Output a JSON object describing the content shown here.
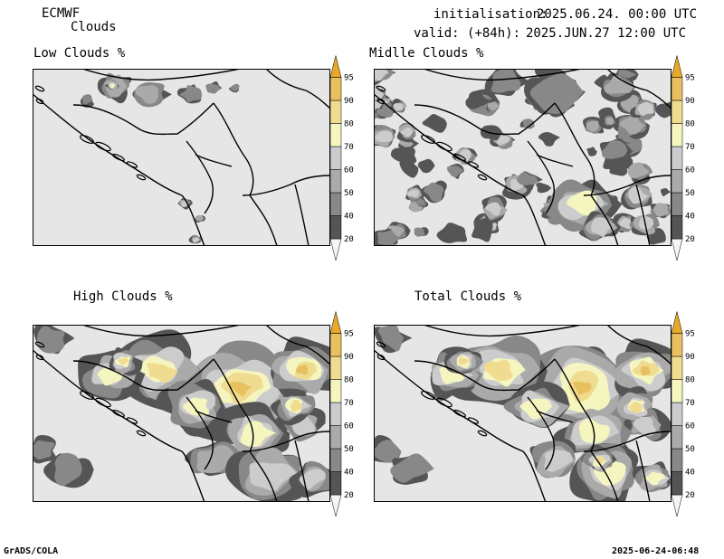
{
  "header": {
    "model": "ECMWF",
    "product": "Clouds",
    "init_label": "initialisation:",
    "init_value": "2025.06.24. 00:00 UTC",
    "valid_label": "valid: (+84h):",
    "valid_value": "2025.JUN.27 12:00 UTC"
  },
  "panels": [
    {
      "title": "Low Clouds %",
      "coverage": "low"
    },
    {
      "title": "Midlle Clouds %",
      "coverage": "middle"
    },
    {
      "title": "High Clouds %",
      "coverage": "high"
    },
    {
      "title": "Total Clouds %",
      "coverage": "total"
    }
  ],
  "colorbar": {
    "levels": [
      "20",
      "40",
      "50",
      "60",
      "70",
      "80",
      "90",
      "95"
    ],
    "colors": [
      "#f5f5f5",
      "#555555",
      "#888888",
      "#aaaaaa",
      "#cccccc",
      "#f5f5c0",
      "#f0dc90",
      "#e8c060",
      "#e8a828"
    ]
  },
  "map_colors": {
    "background": "#e6e6e6",
    "border": "#000000"
  },
  "footer": {
    "left": "GrADS/COLA",
    "right": "2025-06-24-06:48"
  }
}
